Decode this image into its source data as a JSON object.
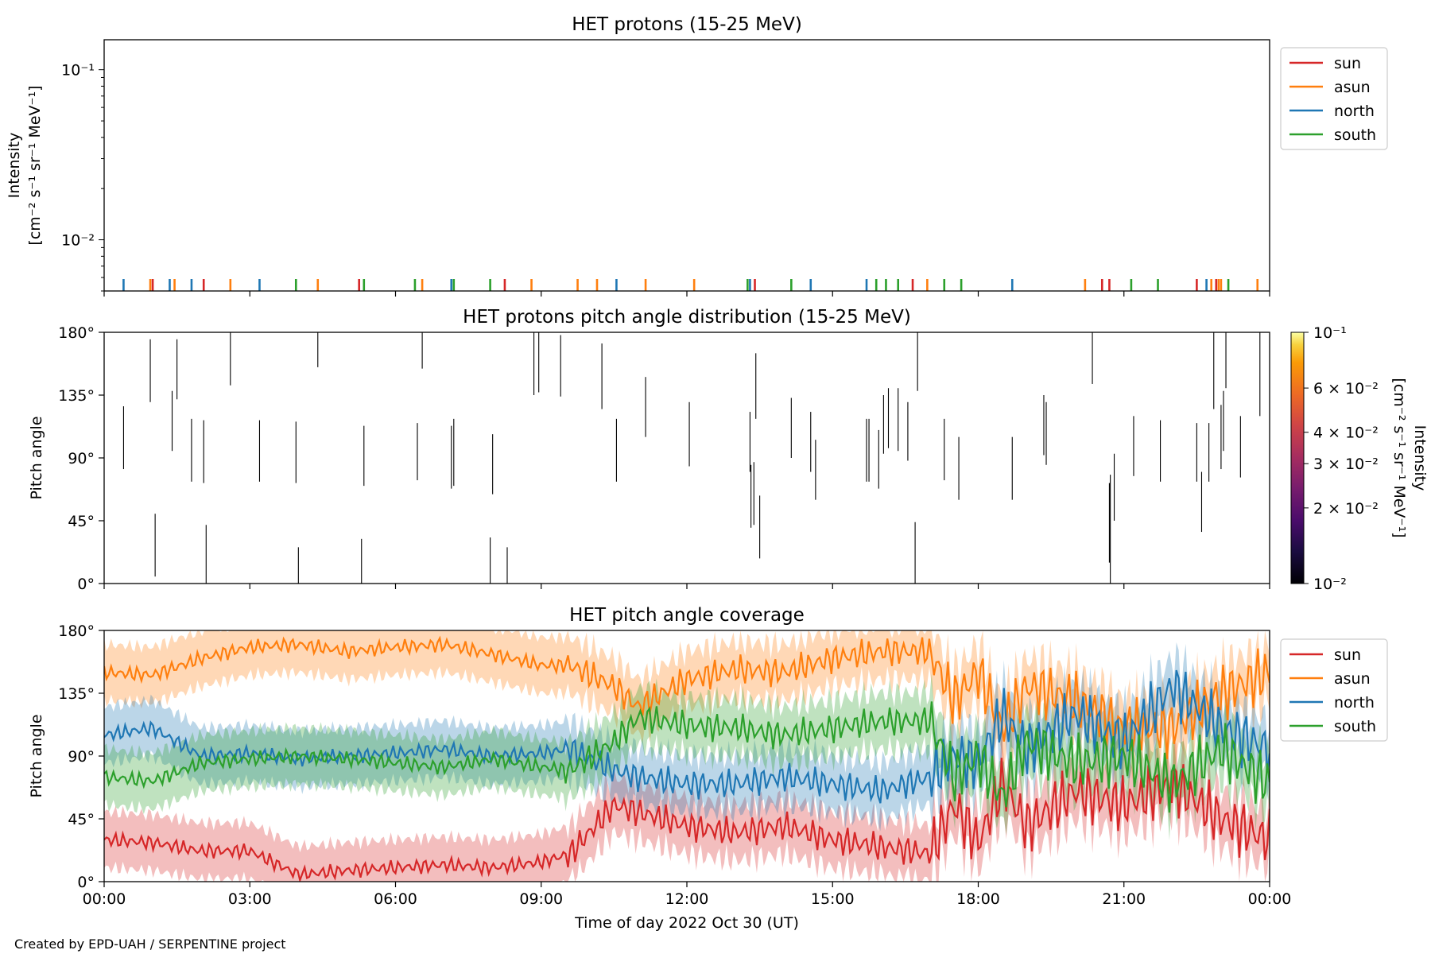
{
  "credit": "Created by EPD-UAH / SERPENTINE project",
  "colors": {
    "sun": "#d62728",
    "asun": "#ff7f0e",
    "north": "#1f77b4",
    "south": "#2ca02c"
  },
  "legend": [
    "sun",
    "asun",
    "north",
    "south"
  ],
  "xaxis": {
    "label": "Time of day 2022 Oct 30 (UT)",
    "range_hours": [
      0,
      24
    ],
    "ticks": [
      {
        "h": 0,
        "label": "00:00"
      },
      {
        "h": 3,
        "label": "03:00"
      },
      {
        "h": 6,
        "label": "06:00"
      },
      {
        "h": 9,
        "label": "09:00"
      },
      {
        "h": 12,
        "label": "12:00"
      },
      {
        "h": 15,
        "label": "15:00"
      },
      {
        "h": 18,
        "label": "18:00"
      },
      {
        "h": 21,
        "label": "21:00"
      },
      {
        "h": 24,
        "label": "00:00"
      }
    ]
  },
  "chart_data": [
    {
      "type": "line",
      "title": "HET protons (15-25 MeV)",
      "ylabel_line1": "Intensity",
      "ylabel_line2": "[cm⁻² s⁻¹ sr⁻¹ MeV⁻¹]",
      "yscale": "log",
      "ylim": [
        0.005,
        0.15
      ],
      "yticks": [
        {
          "v": 0.01,
          "label": "10⁻²"
        },
        {
          "v": 0.1,
          "label": "10⁻¹"
        }
      ],
      "legend_position": "outside right, top",
      "note": "sparse single-count spikes near the bottom of the axis",
      "series": [
        {
          "name": "sun",
          "spike_times_h": [
            1.0,
            2.05,
            5.25,
            8.25,
            13.4,
            16.65,
            20.55,
            20.7,
            22.5,
            22.9
          ]
        },
        {
          "name": "asun",
          "spike_times_h": [
            0.95,
            1.45,
            2.6,
            4.4,
            6.55,
            8.8,
            9.75,
            10.15,
            11.15,
            12.15,
            16.95,
            20.2,
            22.8,
            22.95,
            23.0,
            23.75
          ]
        },
        {
          "name": "north",
          "spike_times_h": [
            0.4,
            1.35,
            1.8,
            3.2,
            7.15,
            10.55,
            13.3,
            14.55,
            15.7,
            18.7,
            22.7
          ]
        },
        {
          "name": "south",
          "spike_times_h": [
            3.95,
            5.35,
            6.4,
            7.2,
            7.95,
            13.25,
            14.15,
            15.9,
            16.1,
            16.35,
            17.3,
            17.65,
            21.15,
            21.7,
            23.15
          ]
        }
      ]
    },
    {
      "type": "heatmap",
      "title": "HET protons pitch angle distribution (15-25 MeV)",
      "ylabel": "Pitch angle",
      "ylim": [
        0,
        180
      ],
      "yticks": [
        {
          "v": 0,
          "label": "0°"
        },
        {
          "v": 45,
          "label": "45°"
        },
        {
          "v": 90,
          "label": "90°"
        },
        {
          "v": 135,
          "label": "135°"
        },
        {
          "v": 180,
          "label": "180°"
        }
      ],
      "colorbar": {
        "label_line1": "Intensity",
        "label_line2": "[cm⁻² s⁻¹ sr⁻¹ MeV⁻¹]",
        "scale": "log",
        "range": [
          0.01,
          0.1
        ],
        "colormap": "inferno",
        "ticks": [
          {
            "v": 0.01,
            "label": "10⁻²"
          },
          {
            "v": 0.02,
            "label": "2 × 10⁻²"
          },
          {
            "v": 0.03,
            "label": "3 × 10⁻²"
          },
          {
            "v": 0.04,
            "label": "4 × 10⁻²"
          },
          {
            "v": 0.06,
            "label": "6 × 10⁻²"
          },
          {
            "v": 0.1,
            "label": "10⁻¹"
          }
        ]
      },
      "segments": [
        [
          0.4,
          82,
          127
        ],
        [
          0.95,
          130,
          175
        ],
        [
          1.05,
          5,
          50
        ],
        [
          1.4,
          95,
          138
        ],
        [
          1.5,
          132,
          175
        ],
        [
          1.8,
          73,
          118
        ],
        [
          2.05,
          72,
          117
        ],
        [
          2.1,
          0,
          42
        ],
        [
          2.6,
          142,
          180
        ],
        [
          3.2,
          73,
          117
        ],
        [
          3.95,
          72,
          116
        ],
        [
          4.0,
          0,
          26
        ],
        [
          4.4,
          155,
          180
        ],
        [
          5.3,
          0,
          32
        ],
        [
          5.35,
          70,
          113
        ],
        [
          6.45,
          74,
          115
        ],
        [
          6.55,
          154,
          180
        ],
        [
          7.15,
          68,
          113
        ],
        [
          7.2,
          70,
          118
        ],
        [
          7.95,
          0,
          33
        ],
        [
          8.0,
          64,
          107
        ],
        [
          8.3,
          0,
          26
        ],
        [
          8.85,
          135,
          180
        ],
        [
          8.95,
          137,
          180
        ],
        [
          9.4,
          134,
          178
        ],
        [
          10.25,
          125,
          172
        ],
        [
          10.55,
          73,
          118
        ],
        [
          11.15,
          105,
          148
        ],
        [
          12.05,
          84,
          130
        ],
        [
          13.3,
          80,
          123
        ],
        [
          13.32,
          40,
          85
        ],
        [
          13.38,
          42,
          87
        ],
        [
          13.42,
          118,
          165
        ],
        [
          13.5,
          18,
          63
        ],
        [
          14.15,
          90,
          133
        ],
        [
          14.55,
          80,
          123
        ],
        [
          14.65,
          60,
          103
        ],
        [
          15.7,
          73,
          118
        ],
        [
          15.75,
          73,
          118
        ],
        [
          15.95,
          68,
          110
        ],
        [
          16.05,
          93,
          135
        ],
        [
          16.15,
          97,
          140
        ],
        [
          16.35,
          95,
          140
        ],
        [
          16.55,
          88,
          130
        ],
        [
          16.7,
          0,
          44
        ],
        [
          16.75,
          138,
          180
        ],
        [
          17.3,
          74,
          118
        ],
        [
          17.6,
          60,
          105
        ],
        [
          18.7,
          60,
          105
        ],
        [
          19.35,
          92,
          135
        ],
        [
          19.4,
          85,
          130
        ],
        [
          20.35,
          143,
          180
        ],
        [
          20.7,
          15,
          72
        ],
        [
          20.72,
          0,
          78
        ],
        [
          20.8,
          45,
          93
        ],
        [
          21.2,
          77,
          120
        ],
        [
          21.75,
          73,
          117
        ],
        [
          22.5,
          73,
          115
        ],
        [
          22.6,
          37,
          80
        ],
        [
          22.75,
          73,
          115
        ],
        [
          22.85,
          125,
          180
        ],
        [
          23.0,
          82,
          128
        ],
        [
          23.05,
          95,
          138
        ],
        [
          23.1,
          140,
          180
        ],
        [
          23.4,
          76,
          120
        ],
        [
          23.8,
          120,
          180
        ]
      ]
    },
    {
      "type": "line",
      "title": "HET pitch angle coverage",
      "ylabel": "Pitch angle",
      "ylim": [
        0,
        180
      ],
      "yticks": [
        {
          "v": 0,
          "label": "0°"
        },
        {
          "v": 45,
          "label": "45°"
        },
        {
          "v": 90,
          "label": "90°"
        },
        {
          "v": 135,
          "label": "135°"
        },
        {
          "v": 180,
          "label": "180°"
        }
      ],
      "legend_position": "outside right, top",
      "band_halfwidth_deg": 20,
      "series": [
        {
          "name": "sun",
          "x": [
            0,
            1,
            2,
            3,
            4,
            5,
            6,
            7,
            8,
            9,
            9.6,
            10.5,
            11,
            12,
            13,
            14,
            15,
            16,
            17,
            17.5,
            18,
            18.5,
            19,
            20,
            21,
            22,
            23,
            24
          ],
          "values": [
            30,
            28,
            22,
            22,
            5,
            8,
            10,
            12,
            10,
            14,
            20,
            55,
            50,
            40,
            35,
            40,
            30,
            25,
            20,
            55,
            28,
            70,
            40,
            65,
            55,
            70,
            45,
            30
          ]
        },
        {
          "name": "asun",
          "x": [
            0,
            1,
            2,
            3,
            4,
            5,
            6,
            7,
            8,
            9,
            9.6,
            10.5,
            11,
            12,
            13,
            14,
            15,
            16,
            17,
            17.5,
            18,
            18.5,
            19,
            20,
            21,
            22,
            23,
            24
          ],
          "values": [
            150,
            148,
            160,
            168,
            170,
            165,
            168,
            170,
            163,
            155,
            155,
            140,
            125,
            145,
            152,
            150,
            160,
            165,
            165,
            130,
            150,
            110,
            140,
            130,
            110,
            110,
            135,
            150
          ]
        },
        {
          "name": "north",
          "x": [
            0,
            1,
            2,
            3,
            4,
            5,
            6,
            7,
            8,
            9,
            9.6,
            10.5,
            11,
            12,
            13,
            14,
            15,
            16,
            17,
            17.5,
            18,
            18.5,
            19,
            20,
            21,
            22,
            23,
            24
          ],
          "values": [
            105,
            110,
            90,
            92,
            88,
            90,
            92,
            95,
            90,
            92,
            95,
            80,
            75,
            70,
            70,
            75,
            70,
            65,
            75,
            90,
            85,
            120,
            95,
            120,
            100,
            140,
            110,
            95
          ]
        },
        {
          "name": "south",
          "x": [
            0,
            1,
            2,
            3,
            4,
            5,
            6,
            7,
            8,
            9,
            9.6,
            10.5,
            11,
            12,
            13,
            14,
            15,
            16,
            17,
            17.5,
            18,
            18.5,
            19,
            20,
            21,
            22,
            23,
            24
          ],
          "values": [
            75,
            72,
            85,
            88,
            90,
            88,
            85,
            82,
            88,
            82,
            80,
            100,
            118,
            112,
            110,
            105,
            110,
            115,
            115,
            75,
            90,
            60,
            100,
            85,
            90,
            70,
            95,
            70
          ]
        }
      ]
    }
  ]
}
